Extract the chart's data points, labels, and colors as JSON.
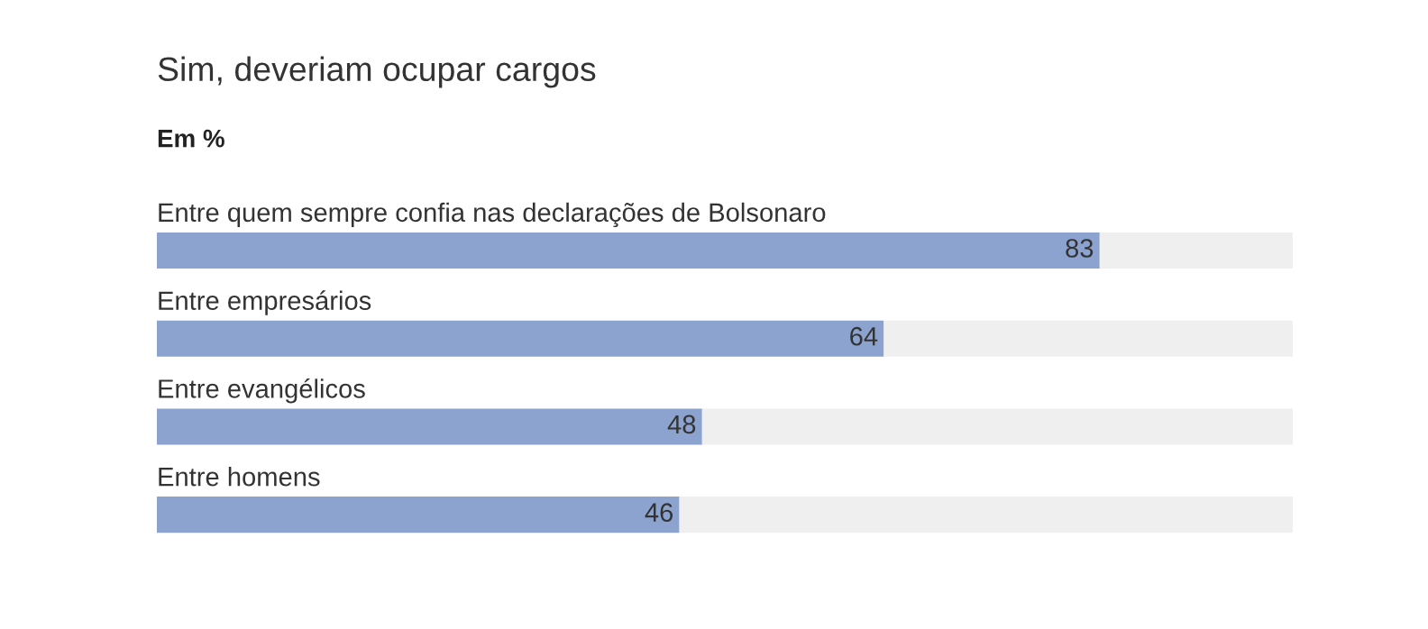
{
  "chart_data": {
    "type": "bar",
    "orientation": "horizontal",
    "stacked": true,
    "title": "Sim, deveriam ocupar cargos",
    "subtitle": "Em %",
    "categories": [
      "Entre quem sempre confia nas declarações de Bolsonaro",
      "Entre empresários",
      "Entre evangélicos",
      "Entre homens"
    ],
    "series": [
      {
        "color": "#8ca2cf",
        "values": [
          83,
          64,
          48,
          46
        ],
        "value_labels": [
          "83",
          "64",
          "48",
          "46"
        ]
      },
      {
        "color": "#efefef",
        "values": [
          17,
          36,
          52,
          54
        ]
      }
    ],
    "xlim": [
      0,
      100
    ]
  }
}
